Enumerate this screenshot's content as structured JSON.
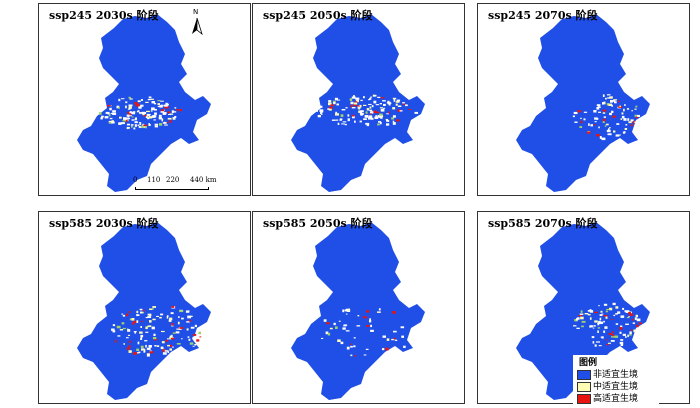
{
  "panels": [
    {
      "title": "ssp245 2030s 阶段",
      "hot": 1.0,
      "cluster": "center"
    },
    {
      "title": "ssp245 2050s 阶段",
      "hot": 0.9,
      "cluster": "center-east"
    },
    {
      "title": "ssp245 2070s 阶段",
      "hot": 0.5,
      "cluster": "east"
    },
    {
      "title": "ssp585 2030s 阶段",
      "hot": 1.0,
      "cluster": "south-east"
    },
    {
      "title": "ssp585 2050s 阶段",
      "hot": 0.2,
      "cluster": "sparse"
    },
    {
      "title": "ssp585 2070s 阶段",
      "hot": 0.6,
      "cluster": "east"
    }
  ],
  "north_arrow": {
    "label": "N"
  },
  "scale_bar": {
    "labels": [
      "0",
      "110",
      "220",
      "440 km"
    ]
  },
  "legend": {
    "title": "图例",
    "items": [
      {
        "label": "非适宜生境",
        "color": "#1f4fe6"
      },
      {
        "label": "中适宜生境",
        "color": "#fffdb4"
      },
      {
        "label": "高适宜生境",
        "color": "#e8140f"
      }
    ]
  },
  "colors": {
    "background": "#1f4fe6",
    "low": "#ffffff",
    "mid": "#fffdb4",
    "green": "#9fd36b",
    "high": "#e8140f"
  }
}
